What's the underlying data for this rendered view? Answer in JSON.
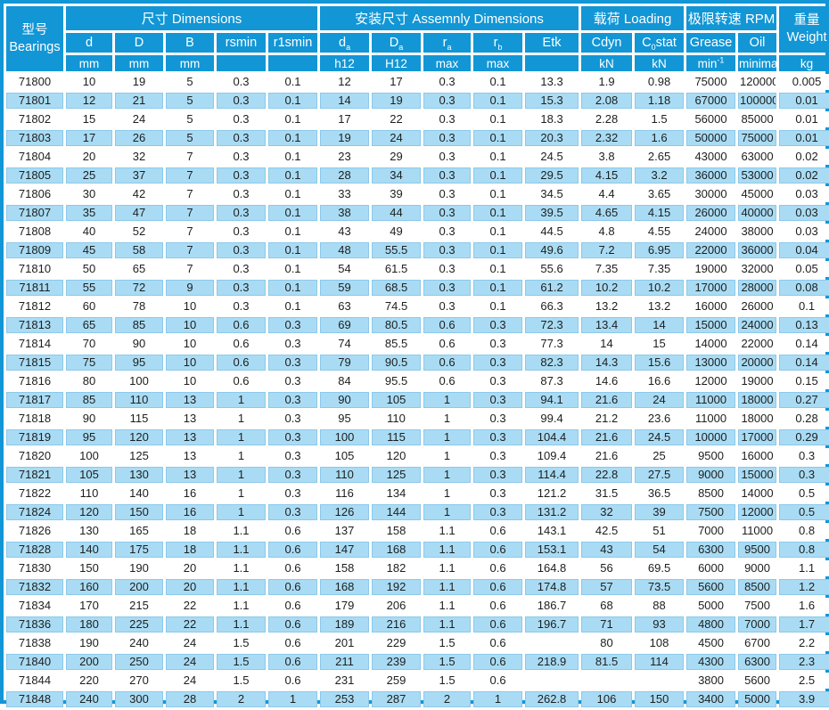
{
  "table": {
    "model_header": {
      "line1": "型号",
      "line2": "Bearings"
    },
    "groups": {
      "dimensions": "尺寸 Dimensions",
      "assembly": "安装尺寸 Assemnly Dimensions",
      "loading": "载荷 Loading",
      "rpm": "极限转速 RPM"
    },
    "weight_header": {
      "line1": "重量",
      "line2": "Weight",
      "unit": "kg"
    },
    "cols": {
      "d": "d",
      "D": "D",
      "B": "B",
      "rsmin": "rsmin",
      "r1smin": "r1smin",
      "da_base": "d",
      "da_sub": "a",
      "Da_base": "D",
      "Da_sub": "a",
      "ra_base": "r",
      "ra_sub": "a",
      "rb_base": "r",
      "rb_sub": "b",
      "etk": "Etk",
      "cdyn": "Cdyn",
      "c0_pre": "C",
      "c0_sub": "0",
      "c0_post": "stat",
      "grease": "Grease",
      "oil": "Oil"
    },
    "units": {
      "mm1": "mm",
      "mm2": "mm",
      "mm3": "mm",
      "h12": "h12",
      "H12": "H12",
      "max1": "max",
      "max2": "max",
      "kN1": "kN",
      "kN2": "kN",
      "min_base": "min",
      "min_sup": "-1",
      "minimal": "minimal",
      "kg": "kg"
    },
    "rows": [
      [
        "71800",
        "10",
        "19",
        "5",
        "0.3",
        "0.1",
        "12",
        "17",
        "0.3",
        "0.1",
        "13.3",
        "1.9",
        "0.98",
        "75000",
        "120000",
        "0.005"
      ],
      [
        "71801",
        "12",
        "21",
        "5",
        "0.3",
        "0.1",
        "14",
        "19",
        "0.3",
        "0.1",
        "15.3",
        "2.08",
        "1.18",
        "67000",
        "100000",
        "0.01"
      ],
      [
        "71802",
        "15",
        "24",
        "5",
        "0.3",
        "0.1",
        "17",
        "22",
        "0.3",
        "0.1",
        "18.3",
        "2.28",
        "1.5",
        "56000",
        "85000",
        "0.01"
      ],
      [
        "71803",
        "17",
        "26",
        "5",
        "0.3",
        "0.1",
        "19",
        "24",
        "0.3",
        "0.1",
        "20.3",
        "2.32",
        "1.6",
        "50000",
        "75000",
        "0.01"
      ],
      [
        "71804",
        "20",
        "32",
        "7",
        "0.3",
        "0.1",
        "23",
        "29",
        "0.3",
        "0.1",
        "24.5",
        "3.8",
        "2.65",
        "43000",
        "63000",
        "0.02"
      ],
      [
        "71805",
        "25",
        "37",
        "7",
        "0.3",
        "0.1",
        "28",
        "34",
        "0.3",
        "0.1",
        "29.5",
        "4.15",
        "3.2",
        "36000",
        "53000",
        "0.02"
      ],
      [
        "71806",
        "30",
        "42",
        "7",
        "0.3",
        "0.1",
        "33",
        "39",
        "0.3",
        "0.1",
        "34.5",
        "4.4",
        "3.65",
        "30000",
        "45000",
        "0.03"
      ],
      [
        "71807",
        "35",
        "47",
        "7",
        "0.3",
        "0.1",
        "38",
        "44",
        "0.3",
        "0.1",
        "39.5",
        "4.65",
        "4.15",
        "26000",
        "40000",
        "0.03"
      ],
      [
        "71808",
        "40",
        "52",
        "7",
        "0.3",
        "0.1",
        "43",
        "49",
        "0.3",
        "0.1",
        "44.5",
        "4.8",
        "4.55",
        "24000",
        "38000",
        "0.03"
      ],
      [
        "71809",
        "45",
        "58",
        "7",
        "0.3",
        "0.1",
        "48",
        "55.5",
        "0.3",
        "0.1",
        "49.6",
        "7.2",
        "6.95",
        "22000",
        "36000",
        "0.04"
      ],
      [
        "71810",
        "50",
        "65",
        "7",
        "0.3",
        "0.1",
        "54",
        "61.5",
        "0.3",
        "0.1",
        "55.6",
        "7.35",
        "7.35",
        "19000",
        "32000",
        "0.05"
      ],
      [
        "71811",
        "55",
        "72",
        "9",
        "0.3",
        "0.1",
        "59",
        "68.5",
        "0.3",
        "0.1",
        "61.2",
        "10.2",
        "10.2",
        "17000",
        "28000",
        "0.08"
      ],
      [
        "71812",
        "60",
        "78",
        "10",
        "0.3",
        "0.1",
        "63",
        "74.5",
        "0.3",
        "0.1",
        "66.3",
        "13.2",
        "13.2",
        "16000",
        "26000",
        "0.1"
      ],
      [
        "71813",
        "65",
        "85",
        "10",
        "0.6",
        "0.3",
        "69",
        "80.5",
        "0.6",
        "0.3",
        "72.3",
        "13.4",
        "14",
        "15000",
        "24000",
        "0.13"
      ],
      [
        "71814",
        "70",
        "90",
        "10",
        "0.6",
        "0.3",
        "74",
        "85.5",
        "0.6",
        "0.3",
        "77.3",
        "14",
        "15",
        "14000",
        "22000",
        "0.14"
      ],
      [
        "71815",
        "75",
        "95",
        "10",
        "0.6",
        "0.3",
        "79",
        "90.5",
        "0.6",
        "0.3",
        "82.3",
        "14.3",
        "15.6",
        "13000",
        "20000",
        "0.14"
      ],
      [
        "71816",
        "80",
        "100",
        "10",
        "0.6",
        "0.3",
        "84",
        "95.5",
        "0.6",
        "0.3",
        "87.3",
        "14.6",
        "16.6",
        "12000",
        "19000",
        "0.15"
      ],
      [
        "71817",
        "85",
        "110",
        "13",
        "1",
        "0.3",
        "90",
        "105",
        "1",
        "0.3",
        "94.1",
        "21.6",
        "24",
        "11000",
        "18000",
        "0.27"
      ],
      [
        "71818",
        "90",
        "115",
        "13",
        "1",
        "0.3",
        "95",
        "110",
        "1",
        "0.3",
        "99.4",
        "21.2",
        "23.6",
        "11000",
        "18000",
        "0.28"
      ],
      [
        "71819",
        "95",
        "120",
        "13",
        "1",
        "0.3",
        "100",
        "115",
        "1",
        "0.3",
        "104.4",
        "21.6",
        "24.5",
        "10000",
        "17000",
        "0.29"
      ],
      [
        "71820",
        "100",
        "125",
        "13",
        "1",
        "0.3",
        "105",
        "120",
        "1",
        "0.3",
        "109.4",
        "21.6",
        "25",
        "9500",
        "16000",
        "0.3"
      ],
      [
        "71821",
        "105",
        "130",
        "13",
        "1",
        "0.3",
        "110",
        "125",
        "1",
        "0.3",
        "114.4",
        "22.8",
        "27.5",
        "9000",
        "15000",
        "0.3"
      ],
      [
        "71822",
        "110",
        "140",
        "16",
        "1",
        "0.3",
        "116",
        "134",
        "1",
        "0.3",
        "121.2",
        "31.5",
        "36.5",
        "8500",
        "14000",
        "0.5"
      ],
      [
        "71824",
        "120",
        "150",
        "16",
        "1",
        "0.3",
        "126",
        "144",
        "1",
        "0.3",
        "131.2",
        "32",
        "39",
        "7500",
        "12000",
        "0.5"
      ],
      [
        "71826",
        "130",
        "165",
        "18",
        "1.1",
        "0.6",
        "137",
        "158",
        "1.1",
        "0.6",
        "143.1",
        "42.5",
        "51",
        "7000",
        "11000",
        "0.8"
      ],
      [
        "71828",
        "140",
        "175",
        "18",
        "1.1",
        "0.6",
        "147",
        "168",
        "1.1",
        "0.6",
        "153.1",
        "43",
        "54",
        "6300",
        "9500",
        "0.8"
      ],
      [
        "71830",
        "150",
        "190",
        "20",
        "1.1",
        "0.6",
        "158",
        "182",
        "1.1",
        "0.6",
        "164.8",
        "56",
        "69.5",
        "6000",
        "9000",
        "1.1"
      ],
      [
        "71832",
        "160",
        "200",
        "20",
        "1.1",
        "0.6",
        "168",
        "192",
        "1.1",
        "0.6",
        "174.8",
        "57",
        "73.5",
        "5600",
        "8500",
        "1.2"
      ],
      [
        "71834",
        "170",
        "215",
        "22",
        "1.1",
        "0.6",
        "179",
        "206",
        "1.1",
        "0.6",
        "186.7",
        "68",
        "88",
        "5000",
        "7500",
        "1.6"
      ],
      [
        "71836",
        "180",
        "225",
        "22",
        "1.1",
        "0.6",
        "189",
        "216",
        "1.1",
        "0.6",
        "196.7",
        "71",
        "93",
        "4800",
        "7000",
        "1.7"
      ],
      [
        "71838",
        "190",
        "240",
        "24",
        "1.5",
        "0.6",
        "201",
        "229",
        "1.5",
        "0.6",
        "",
        "80",
        "108",
        "4500",
        "6700",
        "2.2"
      ],
      [
        "71840",
        "200",
        "250",
        "24",
        "1.5",
        "0.6",
        "211",
        "239",
        "1.5",
        "0.6",
        "218.9",
        "81.5",
        "114",
        "4300",
        "6300",
        "2.3"
      ],
      [
        "71844",
        "220",
        "270",
        "24",
        "1.5",
        "0.6",
        "231",
        "259",
        "1.5",
        "0.6",
        "",
        "",
        "",
        "3800",
        "5600",
        "2.5"
      ],
      [
        "71848",
        "240",
        "300",
        "28",
        "2",
        "1",
        "253",
        "287",
        "2",
        "1",
        "262.8",
        "106",
        "150",
        "3400",
        "5000",
        "3.9"
      ]
    ]
  }
}
